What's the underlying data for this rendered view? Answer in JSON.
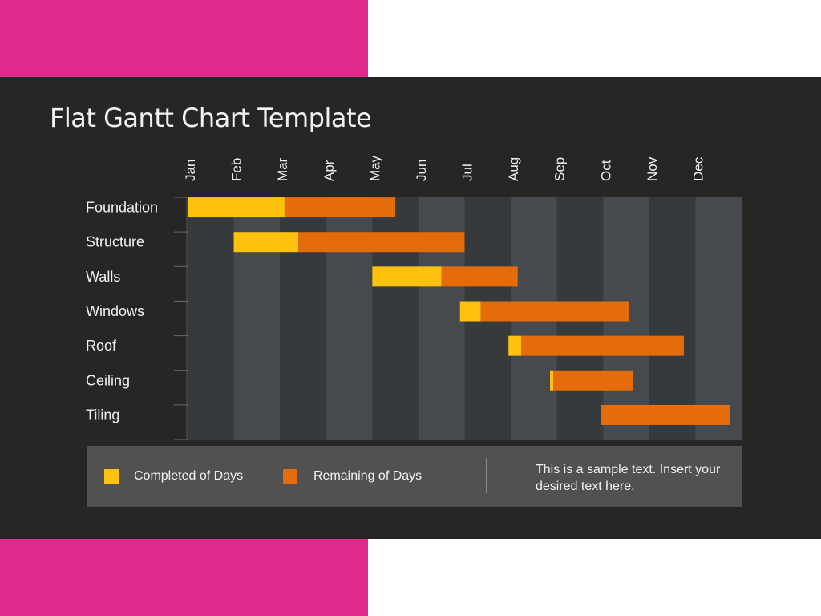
{
  "title": "Flat Gantt Chart Template",
  "colors": {
    "completed": "#fec10e",
    "remaining": "#e46c0a",
    "band_light": "#464a4f",
    "band_dark": "#363a3d"
  },
  "chart_data": {
    "type": "bar",
    "orientation": "horizontal-gantt",
    "title": "Flat Gantt Chart Template",
    "months": [
      "Jan",
      "Feb",
      "Mar",
      "Apr",
      "May",
      "Jun",
      "Jul",
      "Aug",
      "Sep",
      "Oct",
      "Nov",
      "Dec"
    ],
    "tasks": [
      "Foundation",
      "Structure",
      "Walls",
      "Windows",
      "Roof",
      "Ceiling",
      "Tiling"
    ],
    "series": [
      {
        "name": "Completed  of Days",
        "values": [
          2.1,
          1.4,
          1.5,
          0.45,
          0.28,
          0.07,
          0
        ]
      },
      {
        "name": "Remaining  of Days",
        "values": [
          2.4,
          3.6,
          1.65,
          3.2,
          3.52,
          1.73,
          2.8
        ]
      }
    ],
    "start": [
      0,
      1.0,
      4.0,
      5.9,
      6.95,
      7.85,
      8.95
    ],
    "xlim": [
      0,
      12
    ],
    "legend_position": "bottom"
  },
  "legend": {
    "completed_label": "Completed  of Days",
    "remaining_label": "Remaining  of Days",
    "note": "This is a sample text. Insert your desired text here."
  }
}
